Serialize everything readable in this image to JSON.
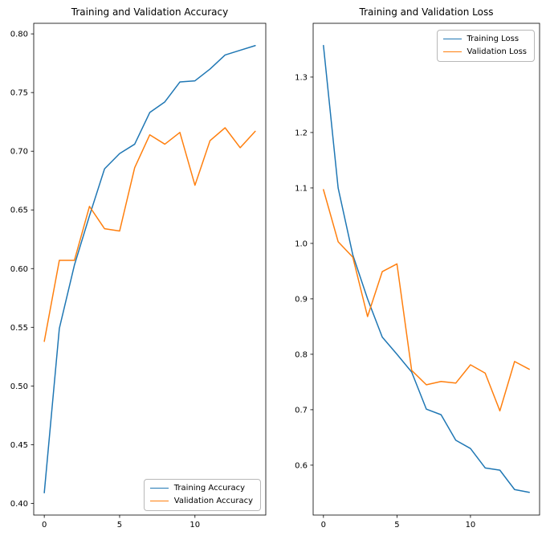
{
  "figure": {
    "background": "#ffffff",
    "text_color": "#000000",
    "axes_color": "#000000"
  },
  "chart_data": [
    {
      "id": "accuracy",
      "type": "line",
      "title": "Training and Validation Accuracy",
      "xlabel": "",
      "ylabel": "",
      "grid": false,
      "x": [
        0,
        1,
        2,
        3,
        4,
        5,
        6,
        7,
        8,
        9,
        10,
        11,
        12,
        13,
        14
      ],
      "series": [
        {
          "name": "Training Accuracy",
          "color": "#1f77b4",
          "values": [
            0.409,
            0.549,
            0.603,
            0.645,
            0.685,
            0.698,
            0.706,
            0.733,
            0.742,
            0.759,
            0.76,
            0.77,
            0.782,
            0.786,
            0.79
          ]
        },
        {
          "name": "Validation Accuracy",
          "color": "#ff7f0e",
          "values": [
            0.538,
            0.607,
            0.607,
            0.653,
            0.634,
            0.632,
            0.686,
            0.714,
            0.706,
            0.716,
            0.671,
            0.709,
            0.72,
            0.703,
            0.717
          ]
        }
      ],
      "xlim": [
        -0.7,
        14.7
      ],
      "ylim": [
        0.39,
        0.809
      ],
      "xticks": [
        0,
        5,
        10
      ],
      "xtick_labels": [
        "0",
        "5",
        "10"
      ],
      "yticks": [
        0.4,
        0.45,
        0.5,
        0.55,
        0.6,
        0.65,
        0.7,
        0.75,
        0.8
      ],
      "ytick_labels": [
        "0.40",
        "0.45",
        "0.50",
        "0.55",
        "0.60",
        "0.65",
        "0.70",
        "0.75",
        "0.80"
      ],
      "legend_position": "lower right"
    },
    {
      "id": "loss",
      "type": "line",
      "title": "Training and Validation Loss",
      "xlabel": "",
      "ylabel": "",
      "grid": false,
      "x": [
        0,
        1,
        2,
        3,
        4,
        5,
        6,
        7,
        8,
        9,
        10,
        11,
        12,
        13,
        14
      ],
      "series": [
        {
          "name": "Training Loss",
          "color": "#1f77b4",
          "values": [
            1.357,
            1.1,
            0.979,
            0.9,
            0.831,
            0.8,
            0.768,
            0.701,
            0.691,
            0.645,
            0.63,
            0.595,
            0.591,
            0.556,
            0.551
          ]
        },
        {
          "name": "Validation Loss",
          "color": "#ff7f0e",
          "values": [
            1.097,
            1.003,
            0.975,
            0.868,
            0.949,
            0.963,
            0.771,
            0.745,
            0.751,
            0.748,
            0.781,
            0.766,
            0.698,
            0.787,
            0.773
          ]
        }
      ],
      "xlim": [
        -0.7,
        14.7
      ],
      "ylim": [
        0.51,
        1.397
      ],
      "xticks": [
        0,
        5,
        10
      ],
      "xtick_labels": [
        "0",
        "5",
        "10"
      ],
      "yticks": [
        0.6,
        0.7,
        0.8,
        0.9,
        1.0,
        1.1,
        1.2,
        1.3
      ],
      "ytick_labels": [
        "0.6",
        "0.7",
        "0.8",
        "0.9",
        "1.0",
        "1.1",
        "1.2",
        "1.3"
      ],
      "legend_position": "upper right"
    }
  ]
}
